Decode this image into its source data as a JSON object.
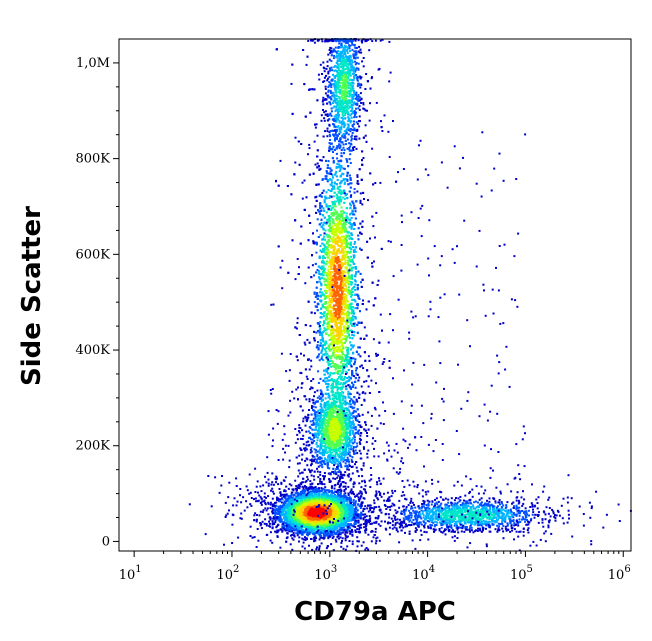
{
  "chart_data": {
    "type": "scatter",
    "subtype": "flow-cytometry density dot plot",
    "xlabel": "CD79a APC",
    "ylabel": "Side Scatter",
    "x_scale": "log",
    "xlim": [
      7,
      1200000
    ],
    "ylim": [
      -20000,
      1050000
    ],
    "x_ticks": [
      {
        "base": "10",
        "exp": "1",
        "value": 10
      },
      {
        "base": "10",
        "exp": "2",
        "value": 100
      },
      {
        "base": "10",
        "exp": "3",
        "value": 1000
      },
      {
        "base": "10",
        "exp": "4",
        "value": 10000
      },
      {
        "base": "10",
        "exp": "5",
        "value": 100000
      },
      {
        "base": "10",
        "exp": "6",
        "value": 1000000
      }
    ],
    "y_ticks": [
      {
        "label": "0",
        "value": 0
      },
      {
        "label": "200K",
        "value": 200000
      },
      {
        "label": "400K",
        "value": 400000
      },
      {
        "label": "600K",
        "value": 600000
      },
      {
        "label": "800K",
        "value": 800000
      },
      {
        "label": "1,0M",
        "value": 1000000
      }
    ],
    "grid": false,
    "legend": "none",
    "colormap": [
      "#0000c8",
      "#0050ff",
      "#00b4ff",
      "#00e6c8",
      "#50ff50",
      "#c8ff00",
      "#ffd200",
      "#ff6400",
      "#ff0000"
    ],
    "populations": [
      {
        "x_center": 750,
        "y_center": 60000,
        "x_spread_decades": 0.18,
        "y_spread": 20000,
        "peak_density": 1.0
      },
      {
        "x_center": 1200,
        "y_center": 530000,
        "x_spread_decades": 0.1,
        "y_spread": 130000,
        "peak_density": 0.8
      },
      {
        "x_center": 1100,
        "y_center": 230000,
        "x_spread_decades": 0.12,
        "y_spread": 40000,
        "peak_density": 0.45
      },
      {
        "x_center": 25000,
        "y_center": 55000,
        "x_spread_decades": 0.35,
        "y_spread": 15000,
        "peak_density": 0.3
      },
      {
        "x_center": 1400,
        "y_center": 950000,
        "x_spread_decades": 0.08,
        "y_spread": 60000,
        "peak_density": 0.35
      }
    ]
  }
}
